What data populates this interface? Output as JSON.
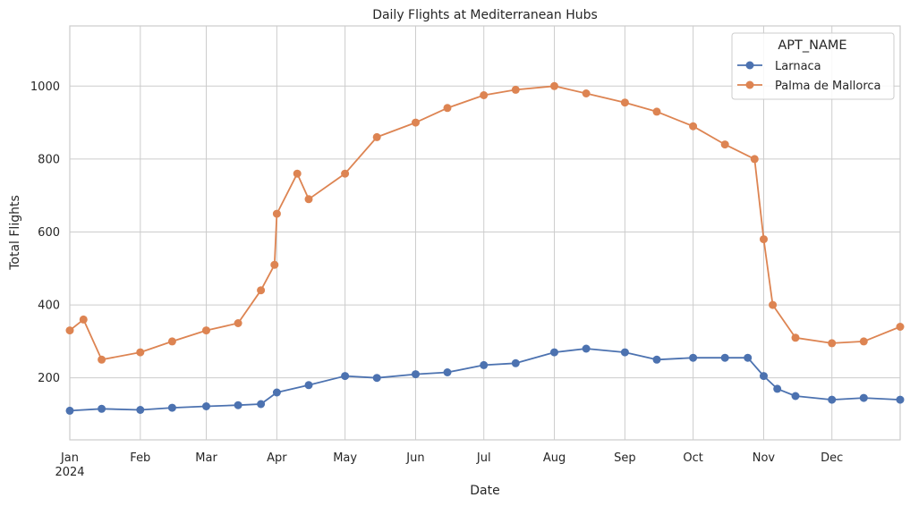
{
  "chart_data": {
    "type": "line",
    "title": "Daily Flights at Mediterranean Hubs",
    "xlabel": "Date",
    "ylabel": "Total Flights",
    "x_tick_labels": [
      "Jan",
      "Feb",
      "Mar",
      "Apr",
      "May",
      "Jun",
      "Jul",
      "Aug",
      "Sep",
      "Oct",
      "Nov",
      "Dec"
    ],
    "x_year_label": "2024",
    "xlim": [
      "2024-01-01",
      "2024-12-31"
    ],
    "ylim": [
      30,
      1165
    ],
    "y_ticks": [
      200,
      400,
      600,
      800,
      1000
    ],
    "grid": true,
    "markers": true,
    "legend": {
      "title": "APT_NAME",
      "placement": "top-right"
    },
    "series": [
      {
        "name": "Larnaca",
        "color": "#4c72b0",
        "points": [
          [
            "2024-01-01",
            110
          ],
          [
            "2024-01-15",
            115
          ],
          [
            "2024-02-01",
            112
          ],
          [
            "2024-02-15",
            118
          ],
          [
            "2024-03-01",
            122
          ],
          [
            "2024-03-15",
            125
          ],
          [
            "2024-03-25",
            128
          ],
          [
            "2024-04-01",
            160
          ],
          [
            "2024-04-15",
            180
          ],
          [
            "2024-05-01",
            205
          ],
          [
            "2024-05-15",
            200
          ],
          [
            "2024-06-01",
            210
          ],
          [
            "2024-06-15",
            215
          ],
          [
            "2024-07-01",
            235
          ],
          [
            "2024-07-15",
            240
          ],
          [
            "2024-08-01",
            270
          ],
          [
            "2024-08-15",
            280
          ],
          [
            "2024-09-01",
            270
          ],
          [
            "2024-09-15",
            250
          ],
          [
            "2024-10-01",
            255
          ],
          [
            "2024-10-15",
            255
          ],
          [
            "2024-10-25",
            255
          ],
          [
            "2024-11-01",
            205
          ],
          [
            "2024-11-07",
            170
          ],
          [
            "2024-11-15",
            150
          ],
          [
            "2024-12-01",
            140
          ],
          [
            "2024-12-15",
            145
          ],
          [
            "2024-12-31",
            140
          ]
        ]
      },
      {
        "name": "Palma de Mallorca",
        "color": "#dd8452",
        "points": [
          [
            "2024-01-01",
            330
          ],
          [
            "2024-01-07",
            360
          ],
          [
            "2024-01-15",
            250
          ],
          [
            "2024-02-01",
            270
          ],
          [
            "2024-02-15",
            300
          ],
          [
            "2024-03-01",
            330
          ],
          [
            "2024-03-15",
            350
          ],
          [
            "2024-03-25",
            440
          ],
          [
            "2024-03-31",
            510
          ],
          [
            "2024-04-01",
            650
          ],
          [
            "2024-04-10",
            760
          ],
          [
            "2024-04-15",
            690
          ],
          [
            "2024-05-01",
            760
          ],
          [
            "2024-05-15",
            860
          ],
          [
            "2024-06-01",
            900
          ],
          [
            "2024-06-15",
            940
          ],
          [
            "2024-07-01",
            975
          ],
          [
            "2024-07-15",
            990
          ],
          [
            "2024-08-01",
            1000
          ],
          [
            "2024-08-15",
            980
          ],
          [
            "2024-09-01",
            955
          ],
          [
            "2024-09-15",
            930
          ],
          [
            "2024-10-01",
            890
          ],
          [
            "2024-10-15",
            840
          ],
          [
            "2024-10-28",
            800
          ],
          [
            "2024-11-01",
            580
          ],
          [
            "2024-11-05",
            400
          ],
          [
            "2024-11-15",
            310
          ],
          [
            "2024-12-01",
            295
          ],
          [
            "2024-12-15",
            300
          ],
          [
            "2024-12-31",
            340
          ]
        ]
      }
    ]
  }
}
